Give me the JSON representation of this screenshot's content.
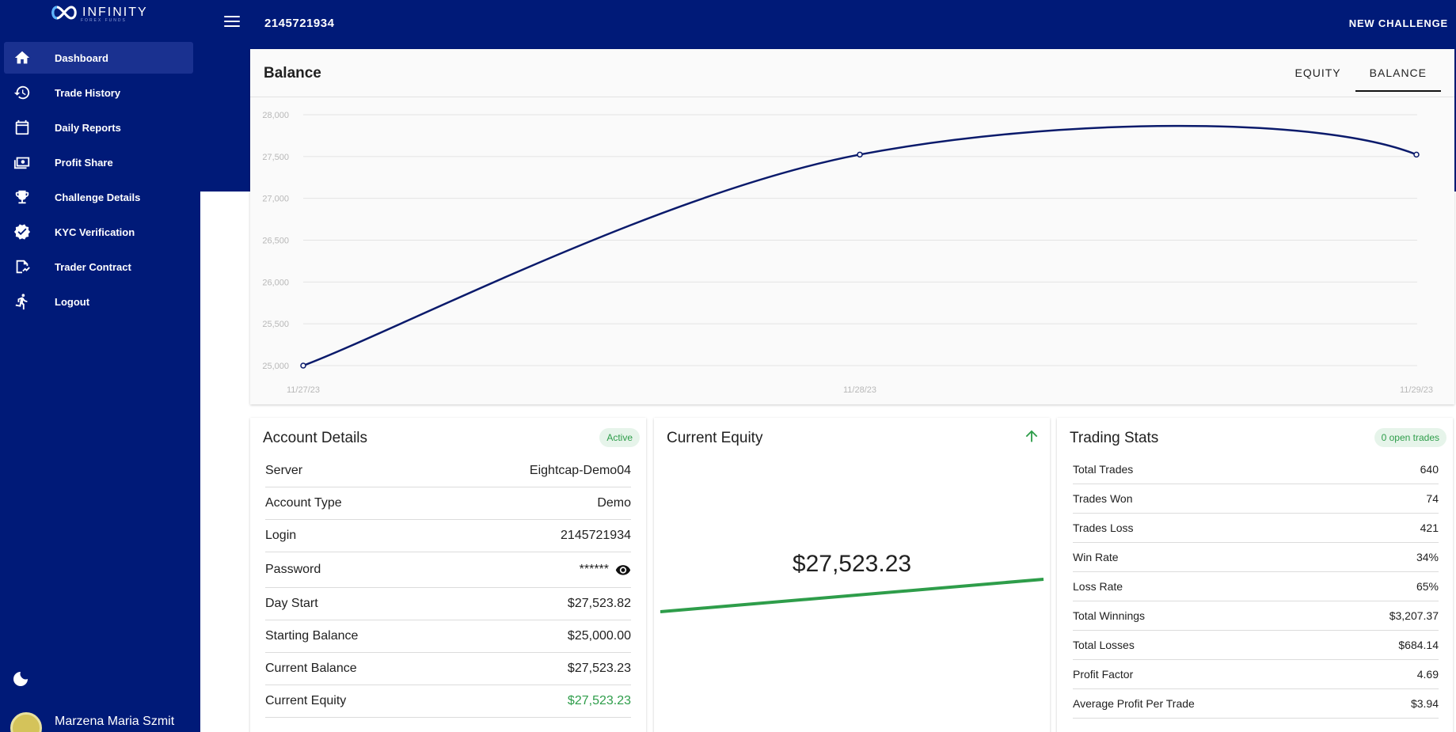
{
  "brand": {
    "name": "INFINITY",
    "subtitle": "FOREX FUNDS"
  },
  "header": {
    "account_number": "2145721934",
    "new_challenge": "NEW CHALLENGE"
  },
  "sidebar": {
    "items": [
      {
        "label": "Dashboard",
        "icon": "home-icon",
        "active": true
      },
      {
        "label": "Trade History",
        "icon": "history-icon"
      },
      {
        "label": "Daily Reports",
        "icon": "calendar-icon"
      },
      {
        "label": "Profit Share",
        "icon": "money-icon"
      },
      {
        "label": "Challenge Details",
        "icon": "trophy-icon"
      },
      {
        "label": "KYC Verification",
        "icon": "verified-icon"
      },
      {
        "label": "Trader Contract",
        "icon": "contract-icon"
      },
      {
        "label": "Logout",
        "icon": "run-icon"
      }
    ],
    "theme_toggle": "moon-icon",
    "user_name": "Marzena Maria Szmit"
  },
  "balance_card": {
    "title": "Balance",
    "tabs": [
      "EQUITY",
      "BALANCE"
    ],
    "active_tab": "BALANCE"
  },
  "chart_data": {
    "type": "line",
    "x": [
      "11/27/23",
      "11/28/23",
      "11/29/23"
    ],
    "series": [
      {
        "values": [
          25000,
          27523.82,
          27523.23
        ]
      }
    ],
    "y_ticks": [
      "28,000",
      "27,500",
      "27,000",
      "26,500",
      "26,000",
      "25,500",
      "25,000"
    ],
    "ylim": [
      25000,
      28000
    ],
    "grid": true,
    "color": "#0a1a6b"
  },
  "account_details": {
    "title": "Account Details",
    "status": "Active",
    "rows": [
      {
        "label": "Server",
        "value": "Eightcap-Demo04"
      },
      {
        "label": "Account Type",
        "value": "Demo"
      },
      {
        "label": "Login",
        "value": "2145721934"
      },
      {
        "label": "Password",
        "value": "******"
      },
      {
        "label": "Day Start",
        "value": "$27,523.82"
      },
      {
        "label": "Starting Balance",
        "value": "$25,000.00"
      },
      {
        "label": "Current Balance",
        "value": "$27,523.23"
      },
      {
        "label": "Current Equity",
        "value": "$27,523.23"
      }
    ]
  },
  "current_equity": {
    "title": "Current Equity",
    "value": "$27,523.23",
    "trend": "up",
    "color": "#2e9d4a"
  },
  "trading_stats": {
    "title": "Trading Stats",
    "badge": "0 open trades",
    "rows": [
      {
        "label": "Total Trades",
        "value": "640"
      },
      {
        "label": "Trades Won",
        "value": "74"
      },
      {
        "label": "Trades Loss",
        "value": "421"
      },
      {
        "label": "Win Rate",
        "value": "34%"
      },
      {
        "label": "Loss Rate",
        "value": "65%"
      },
      {
        "label": "Total Winnings",
        "value": "$3,207.37"
      },
      {
        "label": "Total Losses",
        "value": "$684.14"
      },
      {
        "label": "Profit Factor",
        "value": "4.69"
      },
      {
        "label": "Average Profit Per Trade",
        "value": "$3.94"
      }
    ]
  }
}
